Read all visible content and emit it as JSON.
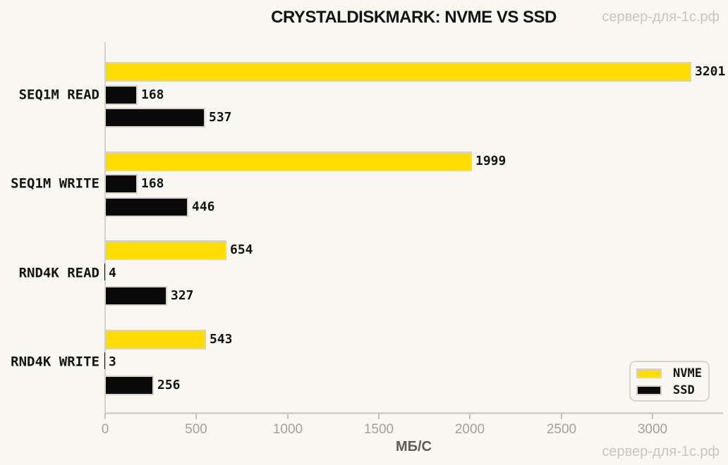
{
  "title": "CRYSTALDISKMARK: NVME VS SSD",
  "watermark": "сервер-для-1с.рф",
  "colors": {
    "background": "#f9f7f1",
    "nvme_yellow": "#ffdd00",
    "ssd_black": "#0a0a0a",
    "axis_gray": "#d6d2ca",
    "tick_text_gray": "#a5a199",
    "watermark_gray": "#c9c5bd"
  },
  "chart_data": {
    "type": "bar",
    "orientation": "horizontal",
    "title": "CRYSTALDISKMARK: NVME VS SSD",
    "xlabel": "МБ/С",
    "ylabel": "",
    "xlim": [
      0,
      3390
    ],
    "xticks": [
      0,
      500,
      1000,
      1500,
      2000,
      2500,
      3000
    ],
    "grid": false,
    "bar_labels": true,
    "legend_position": "lower right",
    "categories": [
      "SEQ1M READ",
      "SEQ1M WRITE",
      "RND4K READ",
      "RND4K WRITE"
    ],
    "series": [
      {
        "legend": "NVME",
        "color": "#ffdd00",
        "values": [
          3201,
          1999,
          654,
          543
        ]
      },
      {
        "legend": "SSD",
        "color": "#0a0a0a",
        "values": [
          168,
          168,
          4,
          3
        ]
      },
      {
        "legend": "SSD",
        "color": "#0a0a0a",
        "values": [
          537,
          446,
          327,
          256
        ]
      }
    ],
    "legend": [
      {
        "label": "NVME",
        "color": "#ffdd00"
      },
      {
        "label": "SSD",
        "color": "#0a0a0a"
      }
    ]
  }
}
